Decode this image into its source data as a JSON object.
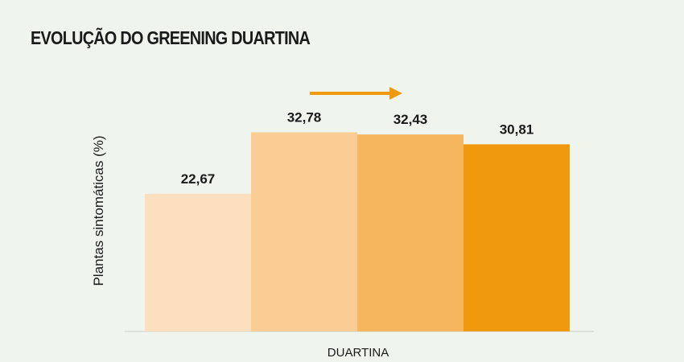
{
  "chart_data": {
    "type": "bar",
    "title": "EVOLUÇÃO DO GREENING DUARTINA",
    "ylabel": "Plantas sintomáticas (%)",
    "xlabel": "",
    "categories": [
      "DUARTINA"
    ],
    "series": [
      {
        "values": [
          22.67
        ],
        "label": "22,67",
        "color": "#fbdfbe"
      },
      {
        "values": [
          32.78
        ],
        "label": "32,78",
        "color": "#f9cd93"
      },
      {
        "values": [
          32.43
        ],
        "label": "32,43",
        "color": "#f5b65e"
      },
      {
        "values": [
          30.81
        ],
        "label": "30,81",
        "color": "#f0990f"
      }
    ],
    "ylim": [
      0,
      40
    ],
    "grid": false,
    "legend": "none",
    "annotation": {
      "type": "arrow",
      "color": "#f0990f"
    }
  }
}
